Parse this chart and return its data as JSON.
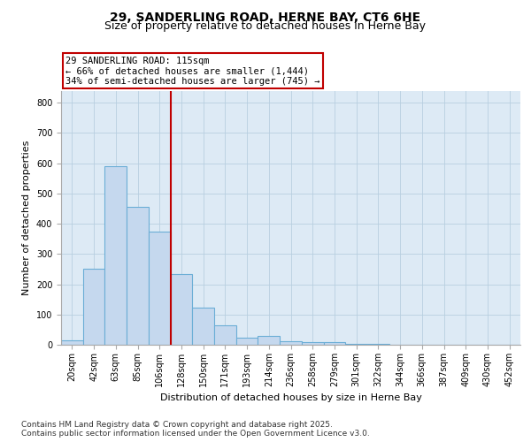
{
  "title_line1": "29, SANDERLING ROAD, HERNE BAY, CT6 6HE",
  "title_line2": "Size of property relative to detached houses in Herne Bay",
  "xlabel": "Distribution of detached houses by size in Herne Bay",
  "ylabel": "Number of detached properties",
  "bar_labels": [
    "20sqm",
    "42sqm",
    "63sqm",
    "85sqm",
    "106sqm",
    "128sqm",
    "150sqm",
    "171sqm",
    "193sqm",
    "214sqm",
    "236sqm",
    "258sqm",
    "279sqm",
    "301sqm",
    "322sqm",
    "344sqm",
    "366sqm",
    "387sqm",
    "409sqm",
    "430sqm",
    "452sqm"
  ],
  "bar_values": [
    15,
    250,
    590,
    455,
    375,
    235,
    122,
    65,
    22,
    30,
    12,
    10,
    8,
    2,
    2,
    1,
    0,
    0,
    0,
    0,
    0
  ],
  "bar_color": "#c5d8ee",
  "bar_edge_color": "#6baed6",
  "bar_linewidth": 0.8,
  "grid_color": "#b8cfe0",
  "background_color": "#ddeaf5",
  "vline_color": "#c00000",
  "vline_x_index": 5,
  "ylim": [
    0,
    840
  ],
  "yticks": [
    0,
    100,
    200,
    300,
    400,
    500,
    600,
    700,
    800
  ],
  "annotation_text": "29 SANDERLING ROAD: 115sqm\n← 66% of detached houses are smaller (1,444)\n34% of semi-detached houses are larger (745) →",
  "annotation_box_color": "#ffffff",
  "annotation_box_edge": "#c00000",
  "footnote": "Contains HM Land Registry data © Crown copyright and database right 2025.\nContains public sector information licensed under the Open Government Licence v3.0.",
  "fig_bgcolor": "#ffffff",
  "title_fontsize": 10,
  "subtitle_fontsize": 9,
  "axis_label_fontsize": 8,
  "tick_fontsize": 7,
  "annotation_fontsize": 7.5,
  "footnote_fontsize": 6.5
}
